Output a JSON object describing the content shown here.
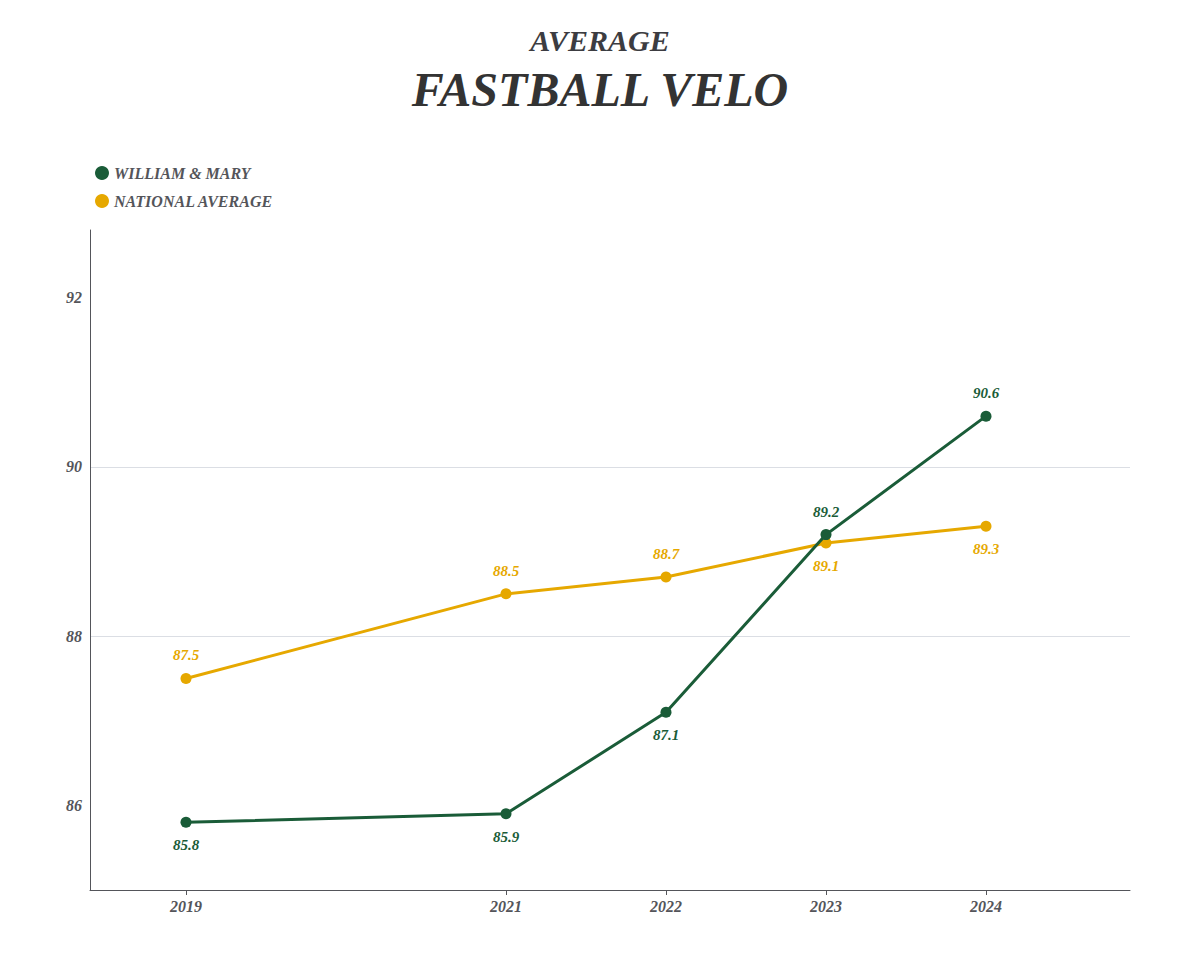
{
  "chart_data": {
    "type": "line",
    "title": "AVERAGE",
    "subtitle": "FASTBALL VELO",
    "x": [
      2019,
      2021,
      2022,
      2023,
      2024
    ],
    "series": [
      {
        "name": "WILLIAM & MARY",
        "color": "#1a5c38",
        "values": [
          85.8,
          85.9,
          87.1,
          89.2,
          90.6
        ]
      },
      {
        "name": "NATIONAL AVERAGE",
        "color": "#e6a800",
        "values": [
          87.5,
          88.5,
          88.7,
          89.1,
          89.3
        ]
      }
    ],
    "xlim": [
      2018.4,
      2024.9
    ],
    "xticks": [
      2019,
      2021,
      2022,
      2023,
      2024
    ],
    "ylim": [
      85.0,
      92.8
    ],
    "yticks": [
      86,
      88,
      90,
      92
    ],
    "grid": "y",
    "legend": "upper left",
    "data_labels": true,
    "marker": "circle"
  }
}
